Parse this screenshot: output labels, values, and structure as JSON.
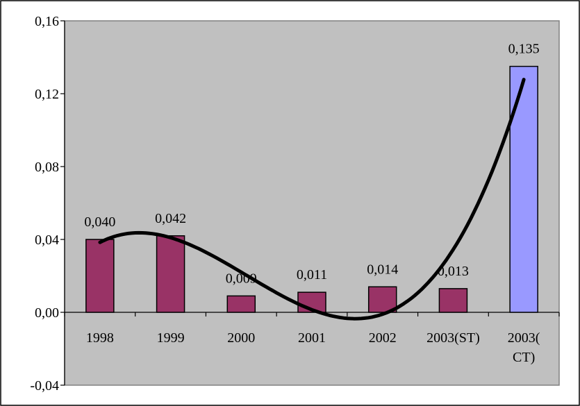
{
  "chart_data": {
    "type": "bar",
    "categories": [
      "1998",
      "1999",
      "2000",
      "2001",
      "2002",
      "2003(ST)",
      "2003(CT)"
    ],
    "category_labels": [
      [
        "1998"
      ],
      [
        "1999"
      ],
      [
        "2000"
      ],
      [
        "2001"
      ],
      [
        "2002"
      ],
      [
        "2003(ST)"
      ],
      [
        "2003(",
        "CT)"
      ]
    ],
    "values": [
      0.04,
      0.042,
      0.009,
      0.011,
      0.014,
      0.013,
      0.135
    ],
    "value_labels": [
      "0,040",
      "0,042",
      "0,009",
      "0,011",
      "0,014",
      "0,013",
      "0,135"
    ],
    "bar_colors": [
      "#993366",
      "#993366",
      "#993366",
      "#993366",
      "#993366",
      "#993366",
      "#9999ff"
    ],
    "ylim": [
      -0.04,
      0.16
    ],
    "yticks": [
      -0.04,
      0.0,
      0.04,
      0.08,
      0.12,
      0.16
    ],
    "ytick_labels": [
      "-0,04",
      "0,00",
      "0,04",
      "0,08",
      "0,12",
      "0,16"
    ],
    "trendline": {
      "type": "polynomial",
      "color": "#000000"
    },
    "plot_background": "#c0c0c0",
    "grid": false,
    "legend": "none",
    "title": "",
    "xlabel": "",
    "ylabel": ""
  }
}
